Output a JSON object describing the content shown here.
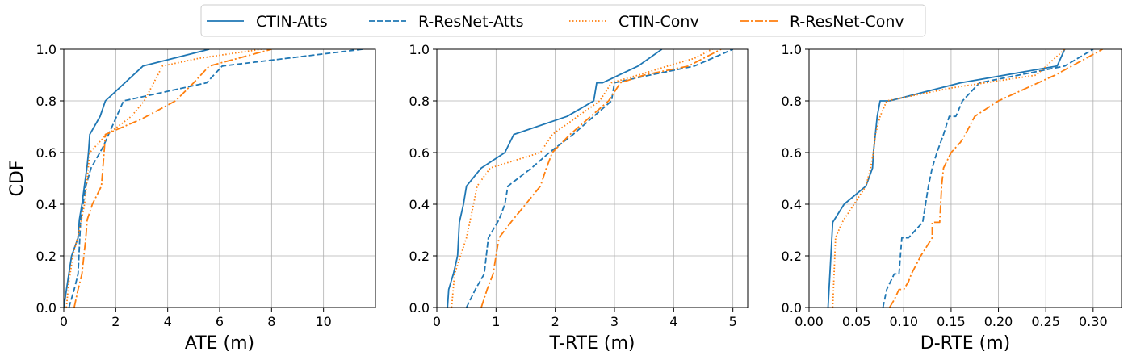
{
  "chart_data": {
    "type": "line",
    "shared_ylabel": "CDF",
    "legend": {
      "placement": "top-center",
      "entries": [
        "CTIN-Atts",
        "R-ResNet-Atts",
        "CTIN-Conv",
        "R-ResNet-Conv"
      ]
    },
    "styles": [
      {
        "color": "#1f77b4",
        "dash": ""
      },
      {
        "color": "#1f77b4",
        "dash": "7,3"
      },
      {
        "color": "#ff7f0e",
        "dash": "1.5,2.5"
      },
      {
        "color": "#ff7f0e",
        "dash": "10,3,2,3"
      }
    ],
    "grid": true,
    "panels": [
      {
        "xlabel": "ATE (m)",
        "xlim": [
          0,
          12
        ],
        "ylim": [
          0,
          1
        ],
        "xticks": [
          "0",
          "2",
          "4",
          "6",
          "8",
          "10"
        ],
        "xtick_values": [
          0,
          2,
          4,
          6,
          8,
          10
        ],
        "yticks": [
          "0.0",
          "0.2",
          "0.4",
          "0.6",
          "0.8",
          "1.0"
        ],
        "ytick_values": [
          0,
          0.2,
          0.4,
          0.6,
          0.8,
          1.0
        ],
        "series": [
          {
            "name": "CTIN-Atts",
            "x": [
              0.0,
              0.15,
              0.3,
              0.55,
              0.6,
              0.7,
              0.9,
              0.95,
              1.0,
              1.4,
              1.6,
              3.05,
              5.6
            ],
            "y": [
              0.0,
              0.1,
              0.2,
              0.27,
              0.34,
              0.4,
              0.55,
              0.6,
              0.67,
              0.74,
              0.8,
              0.935,
              1.0
            ]
          },
          {
            "name": "R-ResNet-Atts",
            "x": [
              0.2,
              0.4,
              0.55,
              0.65,
              0.85,
              1.05,
              1.5,
              2.3,
              5.5,
              6.1,
              11.5
            ],
            "y": [
              0.0,
              0.07,
              0.13,
              0.34,
              0.47,
              0.54,
              0.62,
              0.8,
              0.87,
              0.935,
              1.0
            ]
          },
          {
            "name": "CTIN-Conv",
            "x": [
              0.1,
              0.2,
              0.35,
              0.6,
              0.8,
              0.9,
              1.0,
              1.55,
              2.6,
              3.1,
              3.8,
              5.2,
              7.6
            ],
            "y": [
              0.0,
              0.1,
              0.2,
              0.3,
              0.4,
              0.5,
              0.6,
              0.66,
              0.74,
              0.8,
              0.935,
              0.965,
              1.0
            ]
          },
          {
            "name": "R-ResNet-Conv",
            "x": [
              0.4,
              0.55,
              0.7,
              0.85,
              0.9,
              1.1,
              1.45,
              1.55,
              1.6,
              3.0,
              4.3,
              5.0,
              5.6,
              8.0
            ],
            "y": [
              0.0,
              0.07,
              0.13,
              0.27,
              0.34,
              0.4,
              0.47,
              0.6,
              0.67,
              0.73,
              0.8,
              0.87,
              0.935,
              1.0
            ]
          }
        ]
      },
      {
        "xlabel": "T-RTE (m)",
        "xlim": [
          0,
          5.25
        ],
        "ylim": [
          0,
          1
        ],
        "xticks": [
          "0",
          "1",
          "2",
          "3",
          "4",
          "5"
        ],
        "xtick_values": [
          0,
          1,
          2,
          3,
          4,
          5
        ],
        "yticks": [
          "0.0",
          "0.2",
          "0.4",
          "0.6",
          "0.8",
          "1.0"
        ],
        "ytick_values": [
          0,
          0.2,
          0.4,
          0.6,
          0.8,
          1.0
        ],
        "series": [
          {
            "name": "CTIN-Atts",
            "x": [
              0.18,
              0.2,
              0.28,
              0.35,
              0.38,
              0.45,
              0.5,
              0.75,
              1.15,
              1.3,
              2.2,
              2.65,
              2.7,
              2.8,
              3.4,
              3.8
            ],
            "y": [
              0.0,
              0.07,
              0.13,
              0.2,
              0.33,
              0.4,
              0.47,
              0.54,
              0.6,
              0.67,
              0.74,
              0.8,
              0.87,
              0.87,
              0.935,
              1.0
            ]
          },
          {
            "name": "R-ResNet-Atts",
            "x": [
              0.5,
              0.65,
              0.8,
              0.87,
              1.05,
              1.15,
              1.2,
              1.6,
              1.9,
              2.3,
              2.95,
              3.0,
              3.6,
              4.35,
              5.0
            ],
            "y": [
              0.0,
              0.07,
              0.13,
              0.27,
              0.34,
              0.4,
              0.47,
              0.54,
              0.6,
              0.67,
              0.8,
              0.87,
              0.9,
              0.935,
              1.0
            ]
          },
          {
            "name": "CTIN-Conv",
            "x": [
              0.25,
              0.3,
              0.4,
              0.5,
              0.62,
              0.68,
              0.9,
              1.75,
              1.95,
              2.75,
              2.95,
              3.4,
              3.9,
              4.35,
              4.65
            ],
            "y": [
              0.0,
              0.13,
              0.2,
              0.27,
              0.4,
              0.47,
              0.54,
              0.6,
              0.67,
              0.8,
              0.87,
              0.9,
              0.935,
              0.965,
              1.0
            ]
          },
          {
            "name": "R-ResNet-Conv",
            "x": [
              0.75,
              0.85,
              0.95,
              1.0,
              1.05,
              1.25,
              1.75,
              1.85,
              1.95,
              2.25,
              2.9,
              3.1,
              3.5,
              4.25,
              4.8
            ],
            "y": [
              0.0,
              0.07,
              0.13,
              0.2,
              0.27,
              0.33,
              0.47,
              0.54,
              0.6,
              0.67,
              0.8,
              0.87,
              0.9,
              0.935,
              1.0
            ]
          }
        ]
      },
      {
        "xlabel": "D-RTE (m)",
        "xlim": [
          0.0,
          0.33
        ],
        "ylim": [
          0,
          1
        ],
        "xticks": [
          "0.00",
          "0.05",
          "0.10",
          "0.15",
          "0.20",
          "0.25",
          "0.30"
        ],
        "xtick_values": [
          0.0,
          0.05,
          0.1,
          0.15,
          0.2,
          0.25,
          0.3
        ],
        "yticks": [
          "0.0",
          "0.2",
          "0.4",
          "0.6",
          "0.8",
          "1.0"
        ],
        "ytick_values": [
          0,
          0.2,
          0.4,
          0.6,
          0.8,
          1.0
        ],
        "series": [
          {
            "name": "CTIN-Atts",
            "x": [
              0.02,
              0.022,
              0.025,
              0.037,
              0.06,
              0.067,
              0.068,
              0.07,
              0.072,
              0.075,
              0.085,
              0.16,
              0.262,
              0.27
            ],
            "y": [
              0.0,
              0.13,
              0.33,
              0.4,
              0.47,
              0.54,
              0.6,
              0.67,
              0.74,
              0.8,
              0.8,
              0.87,
              0.935,
              1.0
            ]
          },
          {
            "name": "R-ResNet-Atts",
            "x": [
              0.078,
              0.082,
              0.09,
              0.095,
              0.098,
              0.105,
              0.12,
              0.126,
              0.13,
              0.135,
              0.142,
              0.148,
              0.155,
              0.162,
              0.18,
              0.27,
              0.3
            ],
            "y": [
              0.0,
              0.07,
              0.13,
              0.13,
              0.27,
              0.27,
              0.33,
              0.47,
              0.54,
              0.6,
              0.67,
              0.74,
              0.74,
              0.8,
              0.87,
              0.935,
              1.0
            ]
          },
          {
            "name": "CTIN-Conv",
            "x": [
              0.025,
              0.028,
              0.035,
              0.06,
              0.065,
              0.068,
              0.07,
              0.075,
              0.082,
              0.15,
              0.24,
              0.27
            ],
            "y": [
              0.0,
              0.27,
              0.33,
              0.47,
              0.54,
              0.6,
              0.67,
              0.74,
              0.8,
              0.85,
              0.9,
              1.0
            ]
          },
          {
            "name": "R-ResNet-Conv",
            "x": [
              0.085,
              0.09,
              0.095,
              0.098,
              0.1,
              0.105,
              0.108,
              0.118,
              0.13,
              0.13,
              0.138,
              0.14,
              0.142,
              0.15,
              0.16,
              0.165,
              0.175,
              0.2,
              0.26,
              0.31
            ],
            "y": [
              0.0,
              0.03,
              0.07,
              0.07,
              0.07,
              0.1,
              0.13,
              0.2,
              0.27,
              0.33,
              0.33,
              0.47,
              0.54,
              0.6,
              0.64,
              0.67,
              0.74,
              0.8,
              0.9,
              1.0
            ]
          }
        ]
      }
    ]
  }
}
